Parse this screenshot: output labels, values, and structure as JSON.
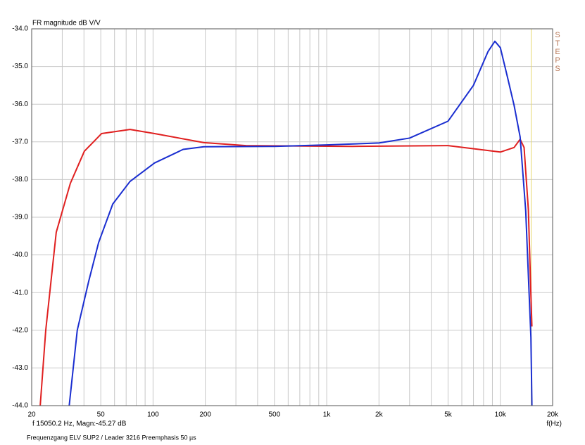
{
  "chart_data": {
    "type": "line",
    "ylabel": "FR magnitude dB V/V",
    "xlabel": "f(Hz)",
    "cursor_readout": "f 15050.2 Hz, Magn:-45.27 dB",
    "caption": "Frequenzgang ELV SUP2 / Leader 3216  Preemphasis 50 µs",
    "side_label": "STEPS",
    "cursor_x": 15050.2,
    "cursor_color": "#e8d870",
    "xscale": "log",
    "grid": true,
    "xlim": [
      20,
      20000
    ],
    "ylim": [
      -44,
      -34
    ],
    "xticks": [
      20,
      50,
      100,
      200,
      500,
      {
        "value": 1000,
        "label": "1k"
      },
      {
        "value": 2000,
        "label": "2k"
      },
      {
        "value": 5000,
        "label": "5k"
      },
      {
        "value": 10000,
        "label": "10k"
      },
      {
        "value": 20000,
        "label": "20k"
      }
    ],
    "xgrid_minor": [
      30,
      40,
      60,
      70,
      80,
      90,
      300,
      400,
      600,
      700,
      800,
      900,
      3000,
      4000,
      6000,
      7000,
      8000,
      9000
    ],
    "yticks": [
      {
        "value": -34,
        "label": "-34.0"
      },
      {
        "value": -35,
        "label": "-35.0"
      },
      {
        "value": -36,
        "label": "-36.0"
      },
      {
        "value": -37,
        "label": "-37.0"
      },
      {
        "value": -38,
        "label": "-38.0"
      },
      {
        "value": -39,
        "label": "-39.0"
      },
      {
        "value": -40,
        "label": "-40.0"
      },
      {
        "value": -41,
        "label": "-41.0"
      },
      {
        "value": -42,
        "label": "-42.0"
      },
      {
        "value": -43,
        "label": "-43.0"
      },
      {
        "value": -44,
        "label": "-44.0"
      }
    ],
    "series": [
      {
        "color": "#e02020",
        "x": [
          22.4,
          24.1,
          27.7,
          33.4,
          40.2,
          50.5,
          73.7,
          102,
          196,
          343,
          1400,
          5000,
          10000,
          12000,
          13000,
          13700,
          14500,
          15000,
          15200
        ],
        "values": [
          -44,
          -42,
          -39.4,
          -38.1,
          -37.25,
          -36.78,
          -36.67,
          -36.78,
          -37.02,
          -37.1,
          -37.12,
          -37.1,
          -37.27,
          -37.15,
          -36.93,
          -37.15,
          -38.8,
          -41.07,
          -41.9
        ]
      },
      {
        "color": "#1a2ed0",
        "x": [
          32.9,
          36.6,
          42.6,
          48.6,
          58.6,
          73.7,
          102,
          149,
          196,
          500,
          1000,
          2000,
          3000,
          5000,
          7000,
          8500,
          9300,
          10000,
          11000,
          12000,
          13000,
          14000,
          15000,
          15200
        ],
        "values": [
          -44,
          -42,
          -40.7,
          -39.67,
          -38.65,
          -38.05,
          -37.56,
          -37.2,
          -37.13,
          -37.12,
          -37.08,
          -37.03,
          -36.9,
          -36.45,
          -35.5,
          -34.6,
          -34.33,
          -34.5,
          -35.29,
          -36.03,
          -36.87,
          -38.83,
          -42.19,
          -44
        ]
      }
    ]
  }
}
